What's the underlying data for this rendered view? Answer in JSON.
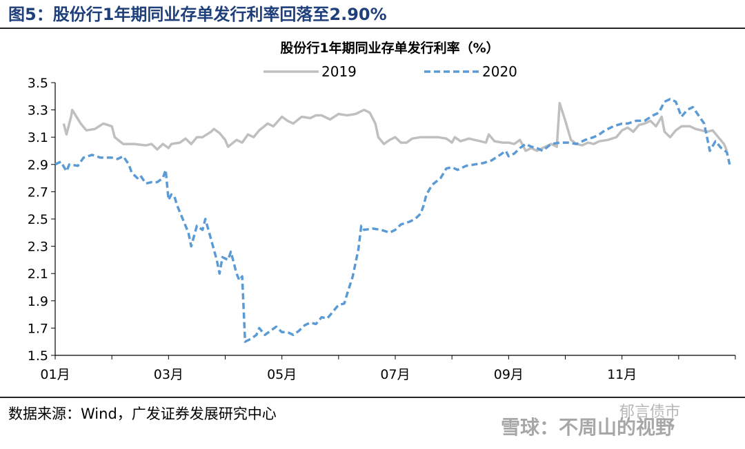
{
  "figure": {
    "title": "图5：股份行1年期同业存单发行利率回落至2.90%"
  },
  "source": {
    "text": "数据来源：Wind，广发证券发展研究中心"
  },
  "watermark": {
    "text": "雪球：不周山的视野",
    "sub": "郁言债市"
  },
  "colors": {
    "s2019": "#bfbfbf",
    "s2020": "#5b9bd5",
    "axis": "#000000"
  },
  "chart_data": {
    "type": "line",
    "title": "股份行1年期同业存单发行利率（%）",
    "xlabel": "",
    "ylabel": "",
    "ylim": [
      1.5,
      3.5
    ],
    "yticks": [
      "3.5",
      "3.3",
      "3.1",
      "2.9",
      "2.7",
      "2.5",
      "2.3",
      "2.1",
      "1.9",
      "1.7",
      "1.5"
    ],
    "xlim": [
      0,
      12
    ],
    "xticks": [
      {
        "x": 0,
        "label": "01月"
      },
      {
        "x": 2,
        "label": "03月"
      },
      {
        "x": 4,
        "label": "05月"
      },
      {
        "x": 6,
        "label": "07月"
      },
      {
        "x": 8,
        "label": "09月"
      },
      {
        "x": 10,
        "label": "11月"
      }
    ],
    "grid": false,
    "legend": "top",
    "series": [
      {
        "name": "2019",
        "style": "solid",
        "points": [
          [
            0.15,
            3.2
          ],
          [
            0.2,
            3.12
          ],
          [
            0.28,
            3.25
          ],
          [
            0.3,
            3.3
          ],
          [
            0.45,
            3.2
          ],
          [
            0.55,
            3.15
          ],
          [
            0.7,
            3.16
          ],
          [
            0.85,
            3.2
          ],
          [
            1.0,
            3.18
          ],
          [
            1.05,
            3.1
          ],
          [
            1.2,
            3.05
          ],
          [
            1.4,
            3.05
          ],
          [
            1.6,
            3.04
          ],
          [
            1.7,
            3.05
          ],
          [
            1.8,
            3.01
          ],
          [
            1.9,
            3.05
          ],
          [
            2.0,
            3.02
          ],
          [
            2.05,
            3.05
          ],
          [
            2.2,
            3.06
          ],
          [
            2.3,
            3.09
          ],
          [
            2.4,
            3.05
          ],
          [
            2.5,
            3.1
          ],
          [
            2.6,
            3.1
          ],
          [
            2.75,
            3.14
          ],
          [
            2.8,
            3.16
          ],
          [
            2.9,
            3.13
          ],
          [
            3.0,
            3.08
          ],
          [
            3.05,
            3.03
          ],
          [
            3.2,
            3.08
          ],
          [
            3.3,
            3.06
          ],
          [
            3.4,
            3.12
          ],
          [
            3.5,
            3.1
          ],
          [
            3.6,
            3.15
          ],
          [
            3.75,
            3.2
          ],
          [
            3.85,
            3.18
          ],
          [
            4.0,
            3.25
          ],
          [
            4.1,
            3.22
          ],
          [
            4.2,
            3.2
          ],
          [
            4.35,
            3.25
          ],
          [
            4.5,
            3.24
          ],
          [
            4.6,
            3.26
          ],
          [
            4.7,
            3.26
          ],
          [
            4.85,
            3.23
          ],
          [
            5.0,
            3.27
          ],
          [
            5.15,
            3.26
          ],
          [
            5.3,
            3.27
          ],
          [
            5.45,
            3.3
          ],
          [
            5.55,
            3.28
          ],
          [
            5.65,
            3.2
          ],
          [
            5.7,
            3.1
          ],
          [
            5.8,
            3.05
          ],
          [
            5.9,
            3.08
          ],
          [
            6.0,
            3.1
          ],
          [
            6.1,
            3.06
          ],
          [
            6.2,
            3.06
          ],
          [
            6.3,
            3.09
          ],
          [
            6.45,
            3.1
          ],
          [
            6.6,
            3.1
          ],
          [
            6.75,
            3.1
          ],
          [
            6.9,
            3.09
          ],
          [
            7.0,
            3.06
          ],
          [
            7.05,
            3.1
          ],
          [
            7.15,
            3.07
          ],
          [
            7.3,
            3.09
          ],
          [
            7.4,
            3.08
          ],
          [
            7.5,
            3.07
          ],
          [
            7.6,
            3.06
          ],
          [
            7.65,
            3.12
          ],
          [
            7.75,
            3.07
          ],
          [
            7.9,
            3.06
          ],
          [
            8.0,
            3.06
          ],
          [
            8.1,
            3.05
          ],
          [
            8.2,
            3.08
          ],
          [
            8.3,
            3.0
          ],
          [
            8.4,
            3.02
          ],
          [
            8.5,
            3.0
          ],
          [
            8.6,
            3.02
          ],
          [
            8.75,
            3.05
          ],
          [
            8.85,
            3.03
          ],
          [
            8.9,
            3.35
          ],
          [
            9.0,
            3.22
          ],
          [
            9.1,
            3.08
          ],
          [
            9.2,
            3.05
          ],
          [
            9.3,
            3.04
          ],
          [
            9.4,
            3.06
          ],
          [
            9.5,
            3.05
          ],
          [
            9.6,
            3.07
          ],
          [
            9.75,
            3.08
          ],
          [
            9.9,
            3.1
          ],
          [
            10.0,
            3.15
          ],
          [
            10.1,
            3.17
          ],
          [
            10.2,
            3.14
          ],
          [
            10.3,
            3.19
          ],
          [
            10.4,
            3.2
          ],
          [
            10.5,
            3.22
          ],
          [
            10.6,
            3.18
          ],
          [
            10.7,
            3.25
          ],
          [
            10.75,
            3.14
          ],
          [
            10.85,
            3.1
          ],
          [
            10.95,
            3.15
          ],
          [
            11.05,
            3.18
          ],
          [
            11.2,
            3.18
          ],
          [
            11.3,
            3.16
          ],
          [
            11.4,
            3.15
          ],
          [
            11.5,
            3.14
          ],
          [
            11.6,
            3.15
          ],
          [
            11.7,
            3.1
          ],
          [
            11.8,
            3.05
          ],
          [
            11.85,
            3.0
          ]
        ]
      },
      {
        "name": "2020",
        "style": "dashed",
        "points": [
          [
            0.0,
            2.9
          ],
          [
            0.1,
            2.92
          ],
          [
            0.2,
            2.85
          ],
          [
            0.25,
            2.9
          ],
          [
            0.4,
            2.89
          ],
          [
            0.5,
            2.95
          ],
          [
            0.65,
            2.97
          ],
          [
            0.8,
            2.95
          ],
          [
            1.0,
            2.95
          ],
          [
            1.1,
            2.94
          ],
          [
            1.2,
            2.96
          ],
          [
            1.3,
            2.9
          ],
          [
            1.35,
            2.84
          ],
          [
            1.45,
            2.8
          ],
          [
            1.5,
            2.82
          ],
          [
            1.6,
            2.76
          ],
          [
            1.7,
            2.77
          ],
          [
            1.8,
            2.77
          ],
          [
            1.9,
            2.8
          ],
          [
            1.95,
            2.86
          ],
          [
            2.0,
            2.64
          ],
          [
            2.05,
            2.68
          ],
          [
            2.1,
            2.67
          ],
          [
            2.15,
            2.6
          ],
          [
            2.25,
            2.5
          ],
          [
            2.35,
            2.4
          ],
          [
            2.4,
            2.3
          ],
          [
            2.5,
            2.45
          ],
          [
            2.6,
            2.42
          ],
          [
            2.65,
            2.5
          ],
          [
            2.75,
            2.35
          ],
          [
            2.85,
            2.2
          ],
          [
            2.9,
            2.1
          ],
          [
            2.95,
            2.22
          ],
          [
            3.05,
            2.2
          ],
          [
            3.1,
            2.26
          ],
          [
            3.2,
            2.1
          ],
          [
            3.25,
            2.05
          ],
          [
            3.3,
            2.08
          ],
          [
            3.35,
            1.6
          ],
          [
            3.45,
            1.62
          ],
          [
            3.55,
            1.65
          ],
          [
            3.6,
            1.7
          ],
          [
            3.7,
            1.65
          ],
          [
            3.8,
            1.68
          ],
          [
            3.9,
            1.71
          ],
          [
            4.0,
            1.67
          ],
          [
            4.1,
            1.67
          ],
          [
            4.2,
            1.65
          ],
          [
            4.3,
            1.68
          ],
          [
            4.4,
            1.72
          ],
          [
            4.5,
            1.74
          ],
          [
            4.6,
            1.73
          ],
          [
            4.7,
            1.78
          ],
          [
            4.8,
            1.77
          ],
          [
            4.9,
            1.82
          ],
          [
            5.0,
            1.87
          ],
          [
            5.1,
            1.88
          ],
          [
            5.15,
            1.95
          ],
          [
            5.25,
            2.08
          ],
          [
            5.35,
            2.28
          ],
          [
            5.4,
            2.45
          ],
          [
            5.45,
            2.42
          ],
          [
            5.6,
            2.43
          ],
          [
            5.75,
            2.42
          ],
          [
            5.9,
            2.4
          ],
          [
            6.0,
            2.42
          ],
          [
            6.1,
            2.46
          ],
          [
            6.25,
            2.48
          ],
          [
            6.35,
            2.5
          ],
          [
            6.45,
            2.54
          ],
          [
            6.5,
            2.6
          ],
          [
            6.55,
            2.68
          ],
          [
            6.65,
            2.75
          ],
          [
            6.8,
            2.8
          ],
          [
            6.9,
            2.87
          ],
          [
            7.0,
            2.88
          ],
          [
            7.1,
            2.86
          ],
          [
            7.25,
            2.89
          ],
          [
            7.4,
            2.9
          ],
          [
            7.55,
            2.91
          ],
          [
            7.7,
            2.93
          ],
          [
            7.85,
            2.97
          ],
          [
            7.95,
            3.0
          ],
          [
            8.0,
            2.96
          ],
          [
            8.1,
            2.98
          ],
          [
            8.2,
            3.02
          ],
          [
            8.3,
            3.05
          ],
          [
            8.4,
            3.03
          ],
          [
            8.5,
            3.02
          ],
          [
            8.6,
            3.0
          ],
          [
            8.75,
            3.05
          ],
          [
            8.9,
            3.06
          ],
          [
            9.05,
            3.06
          ],
          [
            9.2,
            3.05
          ],
          [
            9.35,
            3.08
          ],
          [
            9.5,
            3.1
          ],
          [
            9.6,
            3.12
          ],
          [
            9.7,
            3.15
          ],
          [
            9.85,
            3.18
          ],
          [
            10.0,
            3.2
          ],
          [
            10.1,
            3.2
          ],
          [
            10.25,
            3.22
          ],
          [
            10.4,
            3.22
          ],
          [
            10.55,
            3.26
          ],
          [
            10.65,
            3.28
          ],
          [
            10.75,
            3.36
          ],
          [
            10.85,
            3.38
          ],
          [
            10.95,
            3.36
          ],
          [
            11.05,
            3.25
          ],
          [
            11.15,
            3.3
          ],
          [
            11.25,
            3.32
          ],
          [
            11.35,
            3.26
          ],
          [
            11.45,
            3.2
          ],
          [
            11.5,
            3.1
          ],
          [
            11.55,
            3.0
          ],
          [
            11.65,
            3.07
          ],
          [
            11.75,
            3.02
          ],
          [
            11.85,
            2.99
          ],
          [
            11.9,
            2.9
          ]
        ]
      }
    ]
  }
}
